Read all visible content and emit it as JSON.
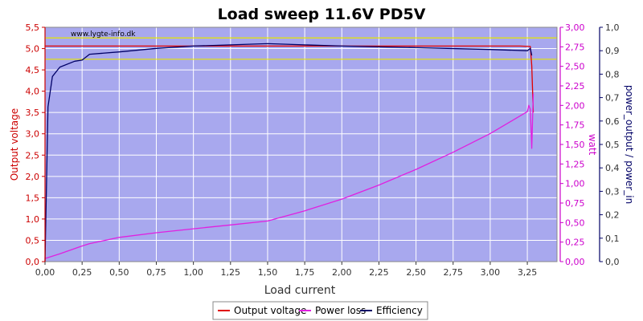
{
  "chart_data": {
    "type": "line",
    "title": "Load sweep 11.6V PD5V",
    "watermark": "www.lygte-info.dk",
    "xlabel": "Load current",
    "ylabel_left": "Output voltage",
    "ylabel_right1": "watt",
    "ylabel_right2": "power_output / power_in",
    "x_range": [
      0,
      3.45
    ],
    "y_left_range": [
      0,
      5.5
    ],
    "y_right1_range": [
      0,
      3.0
    ],
    "y_right2_range": [
      0,
      1.0
    ],
    "x_ticks": [
      "0,00",
      "0,25",
      "0,50",
      "0,75",
      "1,00",
      "1,25",
      "1,50",
      "1,75",
      "2,00",
      "2,25",
      "2,50",
      "2,75",
      "3,00",
      "3,25"
    ],
    "y_left_ticks": [
      "0,0",
      "0,5",
      "1,0",
      "1,5",
      "2,0",
      "2,5",
      "3,0",
      "3,5",
      "4,0",
      "4,5",
      "5,0",
      "5,5"
    ],
    "y_right1_ticks": [
      "0,00",
      "0,25",
      "0,50",
      "0,75",
      "1,00",
      "1,25",
      "1,50",
      "1,75",
      "2,00",
      "2,25",
      "2,50",
      "2,75",
      "3,00"
    ],
    "y_right2_ticks": [
      "0,0",
      "0,1",
      "0,2",
      "0,3",
      "0,4",
      "0,5",
      "0,6",
      "0,7",
      "0,8",
      "0,9",
      "1,0"
    ],
    "reference_lines": [
      {
        "axis": "left",
        "value": 5.25,
        "color": "#e6e600"
      },
      {
        "axis": "left",
        "value": 4.75,
        "color": "#e6e600"
      }
    ],
    "grid": true,
    "legend_position": "bottom",
    "colors": {
      "plot_background": "#a8a8ee",
      "grid": "#ffffff",
      "left_axis": "#cc0000",
      "right1_axis": "#cc00cc",
      "right2_axis": "#000066"
    },
    "series": [
      {
        "name": "Output voltage",
        "axis": "left",
        "color": "#e00000",
        "x": [
          0.0,
          0.25,
          0.5,
          1.0,
          1.5,
          2.0,
          2.5,
          3.0,
          3.2,
          3.27,
          3.28,
          3.29
        ],
        "y": [
          5.06,
          5.06,
          5.06,
          5.06,
          5.06,
          5.06,
          5.06,
          5.06,
          5.06,
          5.05,
          4.6,
          3.5
        ]
      },
      {
        "name": "Power loss",
        "axis": "right1",
        "color": "#e020e0",
        "x": [
          0.0,
          0.1,
          0.25,
          0.3,
          0.5,
          0.75,
          1.0,
          1.25,
          1.5,
          1.75,
          2.0,
          2.25,
          2.5,
          2.75,
          3.0,
          3.25,
          3.26,
          3.27,
          3.28,
          3.29
        ],
        "y": [
          0.04,
          0.1,
          0.2,
          0.23,
          0.31,
          0.37,
          0.42,
          0.47,
          0.52,
          0.65,
          0.8,
          0.98,
          1.18,
          1.4,
          1.64,
          1.92,
          2.0,
          1.95,
          1.45,
          2.15
        ]
      },
      {
        "name": "Efficiency",
        "axis": "right2",
        "color": "#000066",
        "x": [
          0.0,
          0.02,
          0.05,
          0.1,
          0.2,
          0.25,
          0.3,
          0.5,
          0.75,
          1.0,
          1.25,
          1.5,
          1.75,
          2.0,
          2.5,
          3.0,
          3.25,
          3.27,
          3.28
        ],
        "y": [
          0.0,
          0.66,
          0.79,
          0.83,
          0.855,
          0.86,
          0.885,
          0.895,
          0.91,
          0.92,
          0.925,
          0.93,
          0.925,
          0.92,
          0.913,
          0.905,
          0.9,
          0.91,
          0.88
        ]
      }
    ]
  }
}
